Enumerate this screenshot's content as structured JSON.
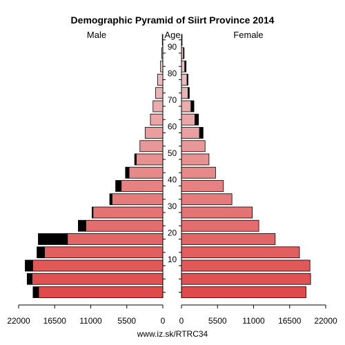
{
  "chart_data": {
    "type": "bar",
    "title": "Demographic Pyramid of Siirt Province 2014",
    "left_label": "Male",
    "center_label": "Age",
    "right_label": "Female",
    "footer": "www.iz.sk/RTRC34",
    "age_groups": [
      "0-4",
      "5-9",
      "10-14",
      "15-19",
      "20-24",
      "25-29",
      "30-34",
      "35-39",
      "40-44",
      "45-49",
      "50-54",
      "55-59",
      "60-64",
      "65-69",
      "70-74",
      "75-79",
      "80-84",
      "85-89",
      "90-94",
      "95+"
    ],
    "age_ticks": [
      10,
      20,
      30,
      40,
      50,
      60,
      70,
      80,
      90
    ],
    "x_ticks": [
      "22000",
      "16500",
      "11000",
      "5500",
      "0",
      "0",
      "5500",
      "11000",
      "16500",
      "22000"
    ],
    "xlim": [
      0,
      22000
    ],
    "male_total": [
      19800,
      20700,
      21000,
      19200,
      19000,
      12900,
      10800,
      8100,
      7200,
      5700,
      4300,
      3500,
      2700,
      1900,
      1500,
      1100,
      800,
      350,
      170,
      80
    ],
    "male_excess": [
      900,
      800,
      1200,
      1200,
      4500,
      1200,
      200,
      400,
      900,
      600,
      300,
      0,
      0,
      0,
      0,
      0,
      0,
      0,
      0,
      0
    ],
    "female_total": [
      19000,
      19700,
      19600,
      18000,
      14300,
      11800,
      10800,
      7700,
      6400,
      5200,
      4200,
      3600,
      3300,
      2600,
      1900,
      1200,
      1000,
      700,
      400,
      100
    ],
    "female_excess": [
      0,
      0,
      0,
      0,
      0,
      0,
      0,
      0,
      0,
      0,
      0,
      0,
      600,
      600,
      500,
      250,
      200,
      250,
      150,
      60
    ],
    "colors": {
      "bar_young": "#e05656",
      "bar_mid": "#dd8080",
      "bar_old": "#ebc3c3",
      "excess": "#000000",
      "outline": "#000000"
    }
  }
}
